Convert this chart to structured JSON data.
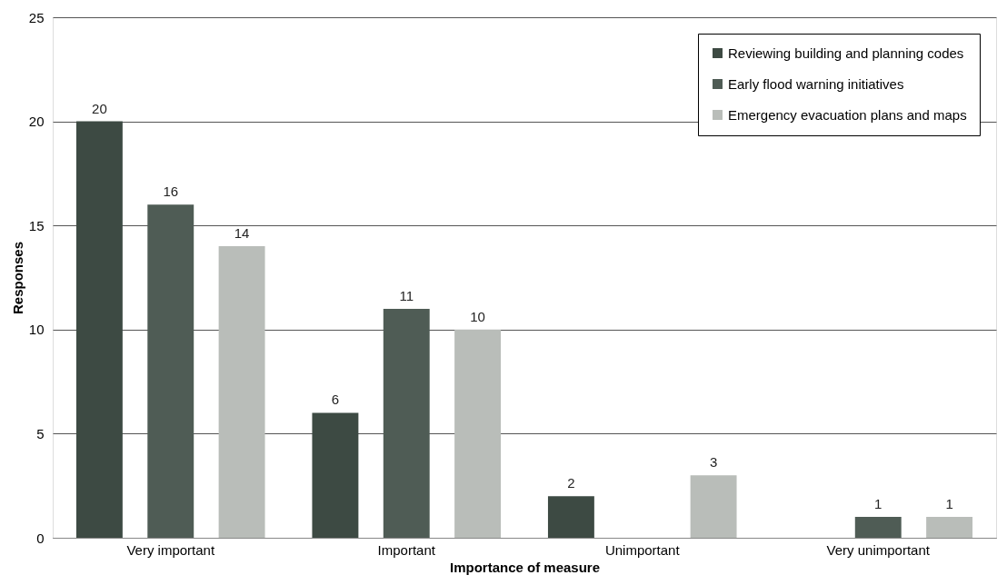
{
  "chart_data": {
    "type": "bar",
    "xlabel": "Importance of measure",
    "ylabel": "Responses",
    "categories": [
      "Very important",
      "Important",
      "Unimportant",
      "Very unimportant"
    ],
    "series": [
      {
        "name": "Reviewing building and planning codes",
        "color": "#3d4a43",
        "values": [
          20,
          6,
          2,
          0
        ],
        "value_labels": [
          "20",
          "6",
          "2",
          null
        ]
      },
      {
        "name": "Early flood warning initiatives",
        "color": "#4f5c55",
        "values": [
          16,
          11,
          0,
          1
        ],
        "value_labels": [
          "16",
          "11",
          null,
          "1"
        ]
      },
      {
        "name": "Emergency evacuation plans and maps",
        "color": "#b9bdb9",
        "values": [
          14,
          10,
          3,
          1
        ],
        "value_labels": [
          "14",
          "10",
          "3",
          "1"
        ]
      }
    ],
    "ylim": [
      0,
      25
    ],
    "yticks": [
      0,
      5,
      10,
      15,
      20,
      25
    ],
    "grid": "y",
    "legend": "top right"
  }
}
